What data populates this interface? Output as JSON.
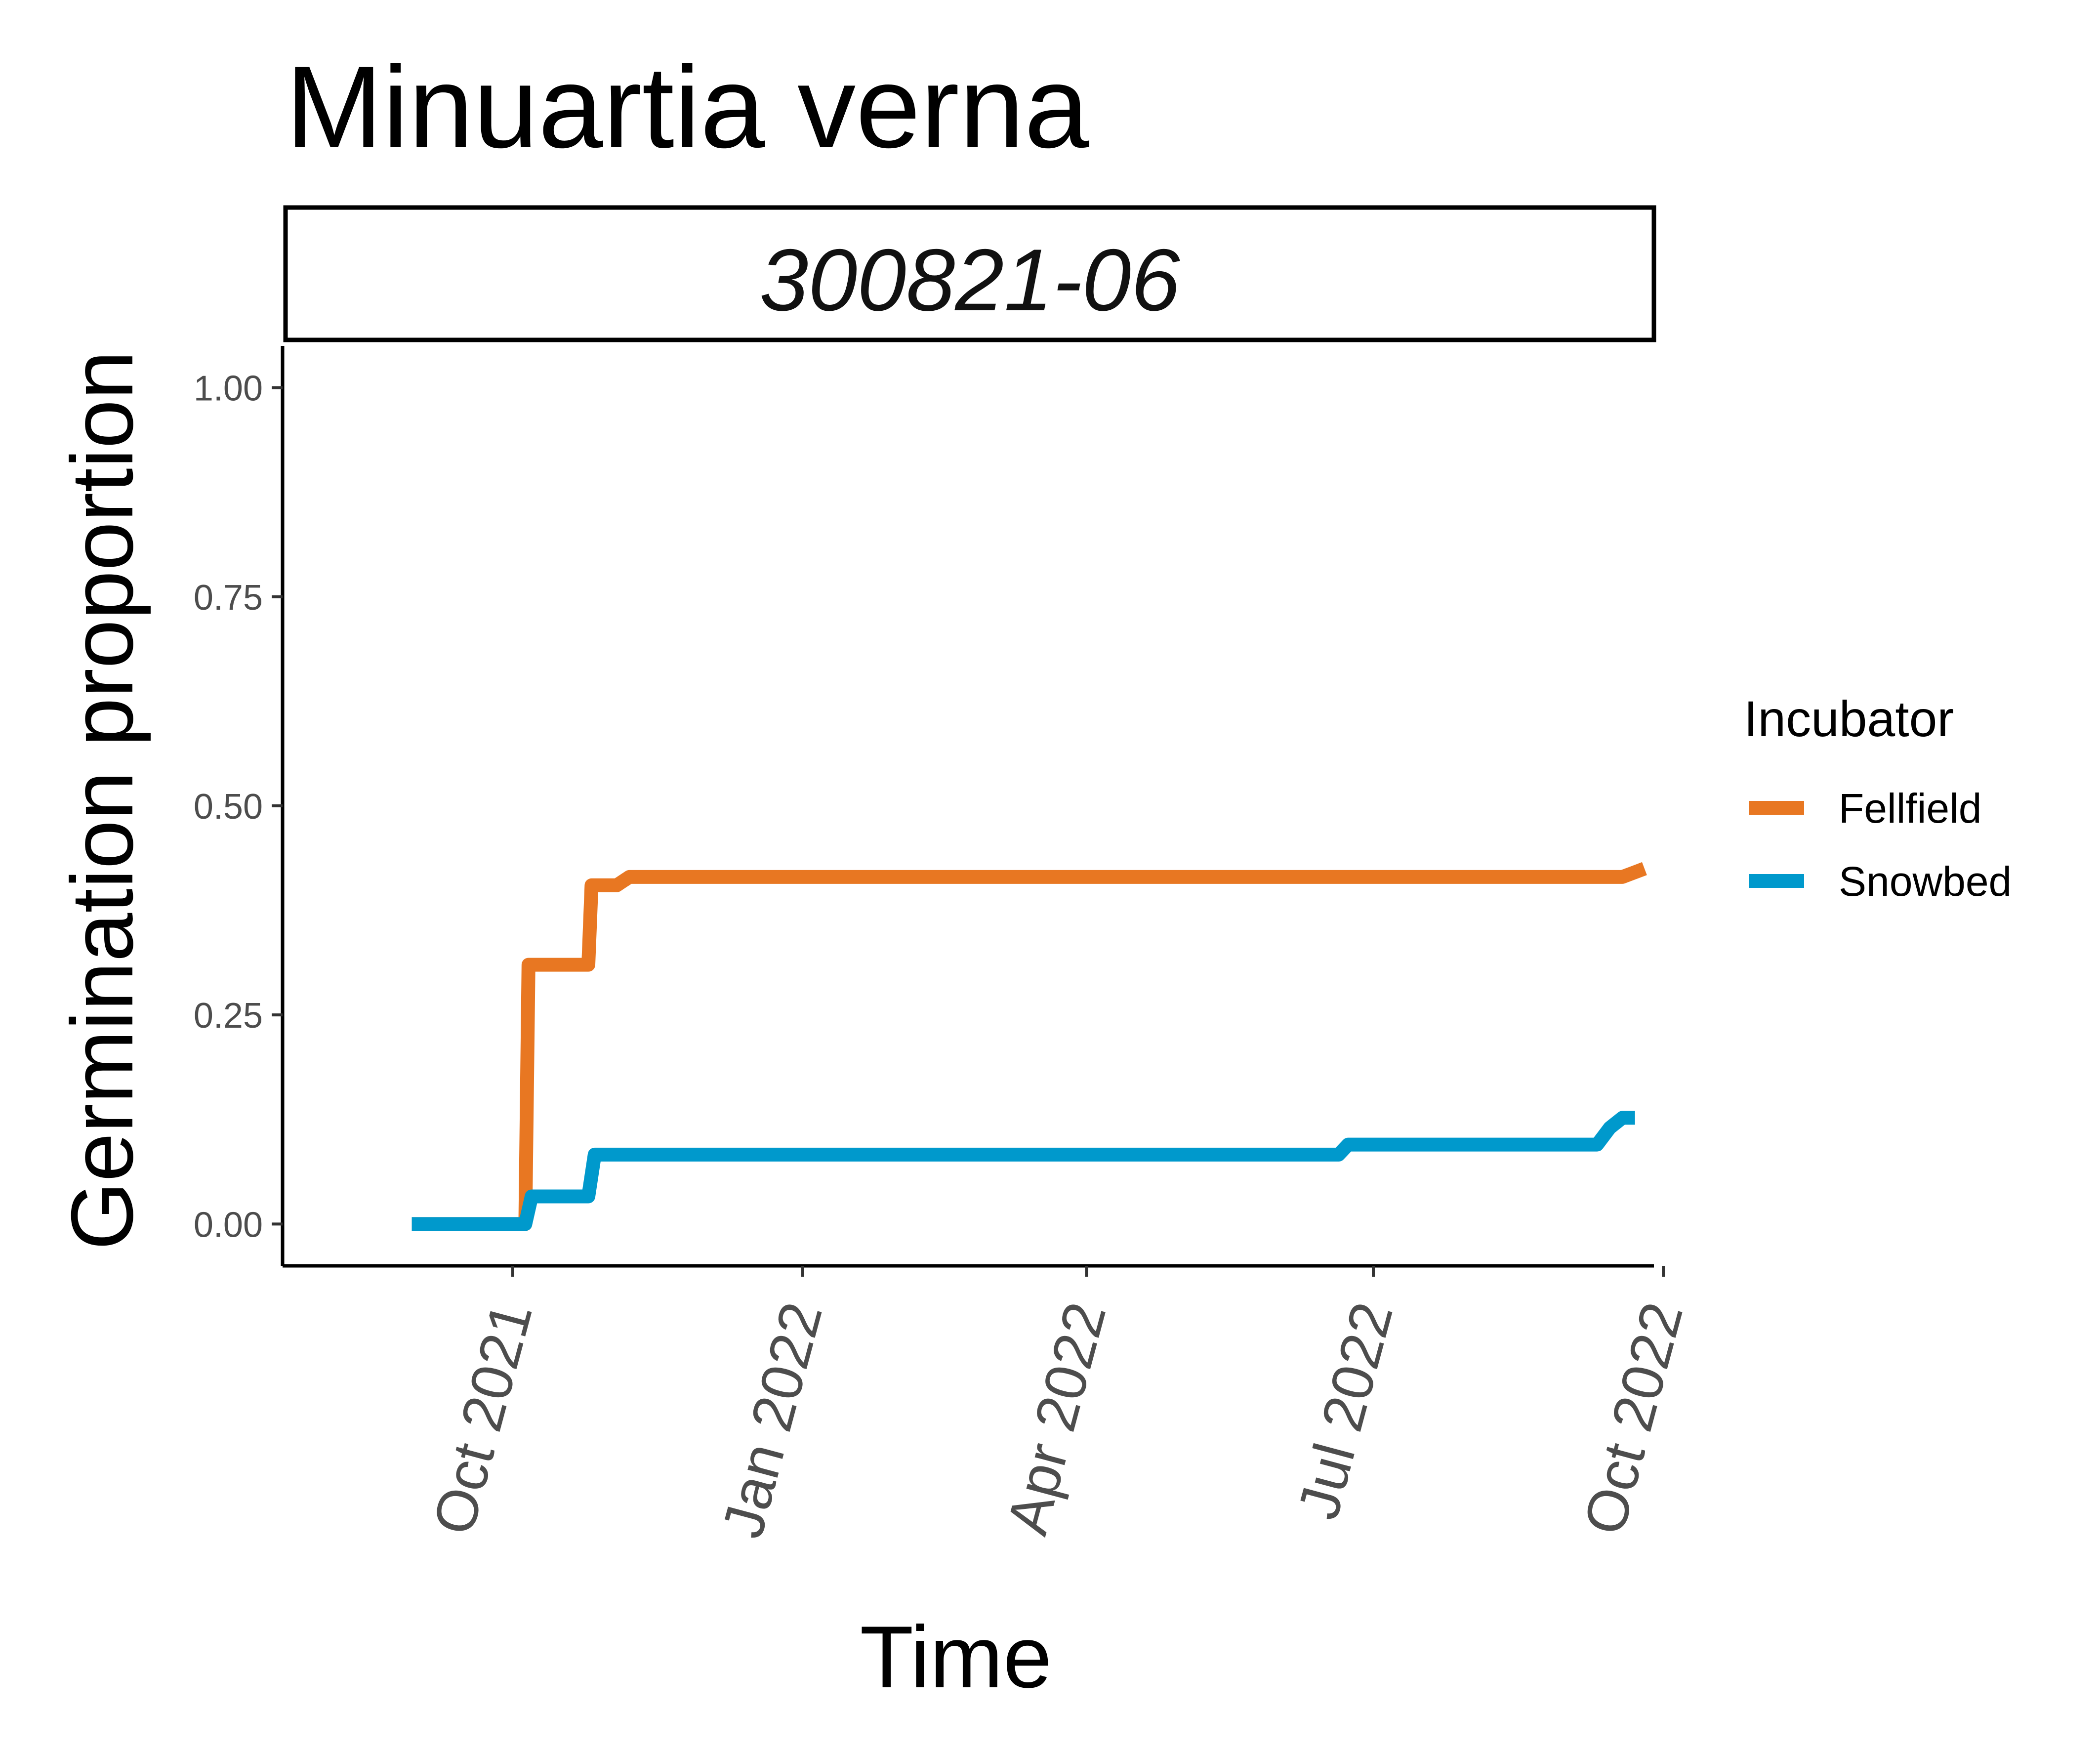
{
  "chart_data": {
    "type": "line",
    "title": "Minuartia verna",
    "facet_label": "300821-06",
    "xlabel": "Time",
    "ylabel": "Germination proportion",
    "xlim": [
      "2021-07-20",
      "2022-09-28"
    ],
    "ylim": [
      -0.05,
      1.05
    ],
    "x_ticks": [
      {
        "date": "2021-10-01",
        "label": "Oct 2021"
      },
      {
        "date": "2022-01-01",
        "label": "Jan 2022"
      },
      {
        "date": "2022-04-01",
        "label": "Apr 2022"
      },
      {
        "date": "2022-07-01",
        "label": "Jul 2022"
      },
      {
        "date": "2022-10-01",
        "label": "Oct 2022"
      }
    ],
    "y_ticks": [
      {
        "value": 0.0,
        "label": "0.00"
      },
      {
        "value": 0.25,
        "label": "0.25"
      },
      {
        "value": 0.5,
        "label": "0.50"
      },
      {
        "value": 0.75,
        "label": "0.75"
      },
      {
        "value": 1.0,
        "label": "1.00"
      }
    ],
    "legend": {
      "title": "Incubator",
      "position": "right"
    },
    "grid": false,
    "series": [
      {
        "name": "Fellfield",
        "color": "#E87722",
        "points": [
          [
            "2021-08-30",
            0.0
          ],
          [
            "2021-10-05",
            0.0
          ],
          [
            "2021-10-06",
            0.31
          ],
          [
            "2021-10-25",
            0.31
          ],
          [
            "2021-10-26",
            0.405
          ],
          [
            "2021-11-03",
            0.405
          ],
          [
            "2021-11-07",
            0.415
          ],
          [
            "2022-09-18",
            0.415
          ],
          [
            "2022-09-25",
            0.425
          ]
        ]
      },
      {
        "name": "Snowbed",
        "color": "#0099CC",
        "points": [
          [
            "2021-08-30",
            0.0
          ],
          [
            "2021-10-05",
            0.0
          ],
          [
            "2021-10-07",
            0.033
          ],
          [
            "2021-10-25",
            0.033
          ],
          [
            "2021-10-27",
            0.083
          ],
          [
            "2022-06-20",
            0.083
          ],
          [
            "2022-06-23",
            0.095
          ],
          [
            "2022-09-10",
            0.095
          ],
          [
            "2022-09-14",
            0.115
          ],
          [
            "2022-09-18",
            0.127
          ],
          [
            "2022-09-22",
            0.127
          ]
        ]
      }
    ]
  }
}
